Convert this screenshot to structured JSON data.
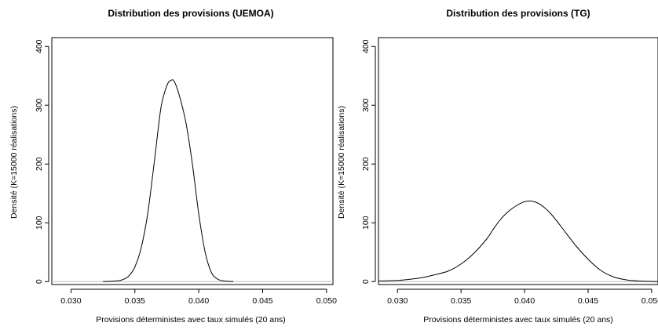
{
  "chart_data": [
    {
      "type": "line",
      "title": "Distribution des provisions (UEMOA)",
      "xlabel": "Provisions déterministes avec taux simulés (20 ans)",
      "ylabel": "Densité (K=15000 réalisations)",
      "xlim": [
        0.0285,
        0.0505
      ],
      "ylim": [
        -5,
        415
      ],
      "xticks": [
        0.03,
        0.035,
        0.04,
        0.045,
        0.05
      ],
      "xtick_labels": [
        "0.030",
        "0.035",
        "0.040",
        "0.045",
        "0.050"
      ],
      "yticks": [
        0,
        100,
        200,
        300,
        400
      ],
      "ytick_labels": [
        "0",
        "100",
        "200",
        "300",
        "400"
      ],
      "grid": false,
      "series": [
        {
          "x": [
            0.0325,
            0.0335,
            0.034,
            0.0345,
            0.035,
            0.0355,
            0.036,
            0.0365,
            0.037,
            0.0373,
            0.0376,
            0.0378,
            0.038,
            0.0382,
            0.0385,
            0.039,
            0.0395,
            0.04,
            0.0405,
            0.041,
            0.0415,
            0.042,
            0.0427
          ],
          "y": [
            0,
            1,
            3,
            9,
            25,
            58,
            115,
            200,
            290,
            320,
            338,
            342,
            343,
            335,
            315,
            270,
            200,
            115,
            50,
            15,
            4,
            1,
            0
          ]
        }
      ]
    },
    {
      "type": "line",
      "title": "Distribution des provisions (TG)",
      "xlabel": "Provisions déterministes avec taux simulés (20 ans)",
      "ylabel": "Densité (K=15000 réalisations)",
      "xlim": [
        0.0285,
        0.0505
      ],
      "ylim": [
        -5,
        415
      ],
      "xticks": [
        0.03,
        0.035,
        0.04,
        0.045,
        0.05
      ],
      "xtick_labels": [
        "0.030",
        "0.035",
        "0.040",
        "0.045",
        "0.050"
      ],
      "yticks": [
        0,
        100,
        200,
        300,
        400
      ],
      "ytick_labels": [
        "0",
        "100",
        "200",
        "300",
        "400"
      ],
      "grid": false,
      "series": [
        {
          "x": [
            0.0285,
            0.03,
            0.031,
            0.032,
            0.033,
            0.034,
            0.035,
            0.036,
            0.037,
            0.0375,
            0.038,
            0.0385,
            0.039,
            0.0395,
            0.04,
            0.0405,
            0.041,
            0.0415,
            0.042,
            0.0425,
            0.043,
            0.044,
            0.045,
            0.046,
            0.047,
            0.048,
            0.049,
            0.0505
          ],
          "y": [
            1,
            2,
            4,
            7,
            12,
            18,
            30,
            48,
            72,
            88,
            103,
            115,
            124,
            131,
            136,
            137,
            134,
            127,
            117,
            104,
            90,
            62,
            38,
            19,
            8,
            3,
            1,
            0
          ]
        }
      ]
    }
  ]
}
